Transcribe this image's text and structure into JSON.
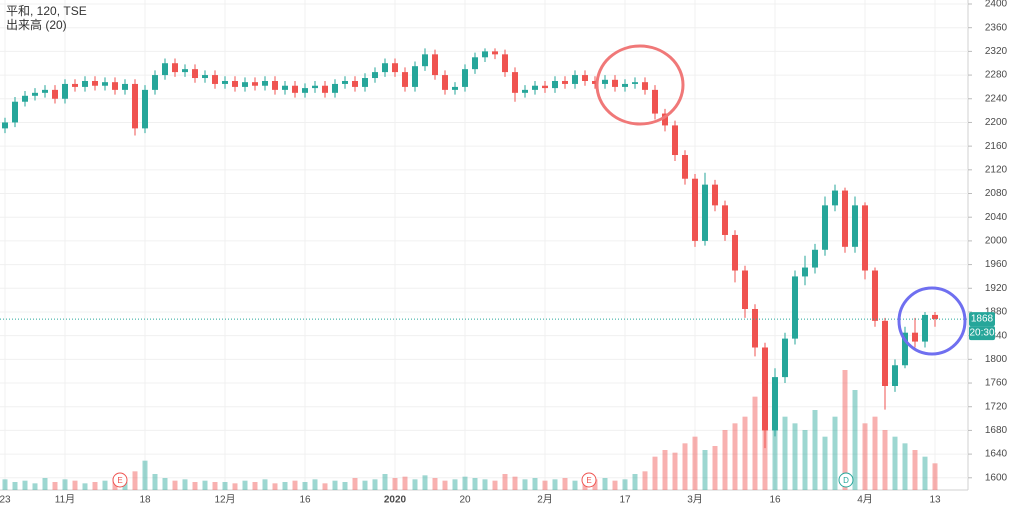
{
  "chart_data": {
    "type": "candlestick",
    "title": "平和, 120, TSE",
    "subtitle": "出来高 (20)",
    "categories": [
      "23",
      null,
      null,
      null,
      null,
      null,
      "11月",
      null,
      null,
      null,
      null,
      null,
      null,
      null,
      "18",
      null,
      null,
      null,
      null,
      null,
      null,
      null,
      "12月",
      null,
      null,
      null,
      null,
      null,
      null,
      null,
      "16",
      null,
      null,
      null,
      null,
      null,
      null,
      null,
      null,
      "2020",
      null,
      null,
      null,
      null,
      null,
      null,
      "20",
      null,
      null,
      null,
      null,
      null,
      null,
      null,
      "2月",
      null,
      null,
      null,
      null,
      null,
      null,
      null,
      "17",
      null,
      null,
      null,
      null,
      null,
      null,
      "3月",
      null,
      null,
      null,
      null,
      null,
      null,
      null,
      "16",
      null,
      null,
      null,
      null,
      null,
      null,
      null,
      null,
      "4月",
      null,
      null,
      null,
      null,
      null,
      null,
      "13"
    ],
    "open": [
      2190,
      2200,
      2235,
      2245,
      2250,
      2255,
      2240,
      2265,
      2260,
      2270,
      2262,
      2268,
      2255,
      2265,
      2190,
      2255,
      2280,
      2300,
      2285,
      2290,
      2275,
      2280,
      2265,
      2270,
      2260,
      2268,
      2262,
      2270,
      2255,
      2262,
      2250,
      2258,
      2262,
      2250,
      2265,
      2270,
      2260,
      2275,
      2285,
      2300,
      2285,
      2260,
      2295,
      2315,
      2280,
      2255,
      2260,
      2290,
      2310,
      2320,
      2315,
      2285,
      2250,
      2255,
      2262,
      2258,
      2270,
      2265,
      2280,
      2270,
      2265,
      2272,
      2260,
      2265,
      2268,
      2255,
      2215,
      2195,
      2145,
      2105,
      2000,
      2095,
      2060,
      2010,
      1950,
      1885,
      1820,
      1680,
      1770,
      1835,
      1940,
      1955,
      1985,
      2060,
      2085,
      1990,
      2060,
      1950,
      1865,
      1755,
      1790,
      1845,
      1830,
      1875
    ],
    "high": [
      2208,
      2243,
      2253,
      2258,
      2263,
      2263,
      2273,
      2273,
      2278,
      2278,
      2276,
      2276,
      2273,
      2273,
      2263,
      2288,
      2308,
      2308,
      2298,
      2298,
      2288,
      2288,
      2278,
      2278,
      2276,
      2276,
      2278,
      2278,
      2270,
      2270,
      2266,
      2270,
      2270,
      2273,
      2278,
      2278,
      2283,
      2293,
      2308,
      2308,
      2293,
      2303,
      2325,
      2323,
      2288,
      2268,
      2298,
      2318,
      2325,
      2325,
      2323,
      2293,
      2263,
      2270,
      2270,
      2278,
      2278,
      2288,
      2288,
      2278,
      2280,
      2280,
      2273,
      2276,
      2276,
      2263,
      2223,
      2203,
      2153,
      2113,
      2115,
      2103,
      2068,
      2018,
      1958,
      1893,
      1828,
      1785,
      1845,
      1950,
      1975,
      1995,
      2075,
      2095,
      2090,
      2075,
      2065,
      1955,
      1870,
      1800,
      1855,
      1870,
      1880,
      1880
    ],
    "low": [
      2182,
      2192,
      2227,
      2237,
      2242,
      2232,
      2232,
      2252,
      2252,
      2254,
      2254,
      2247,
      2247,
      2178,
      2182,
      2247,
      2272,
      2277,
      2277,
      2267,
      2267,
      2257,
      2257,
      2252,
      2252,
      2254,
      2254,
      2247,
      2247,
      2242,
      2242,
      2250,
      2242,
      2242,
      2257,
      2252,
      2252,
      2267,
      2277,
      2277,
      2252,
      2252,
      2287,
      2272,
      2247,
      2247,
      2252,
      2282,
      2302,
      2307,
      2277,
      2235,
      2242,
      2247,
      2250,
      2250,
      2257,
      2257,
      2262,
      2257,
      2257,
      2252,
      2252,
      2257,
      2247,
      2205,
      2185,
      2135,
      2095,
      1990,
      1992,
      2050,
      2000,
      1930,
      1870,
      1805,
      1650,
      1670,
      1760,
      1825,
      1925,
      1945,
      1975,
      2050,
      1980,
      1980,
      1935,
      1855,
      1715,
      1745,
      1785,
      1820,
      1820,
      1855
    ],
    "close": [
      2200,
      2235,
      2245,
      2250,
      2255,
      2240,
      2265,
      2260,
      2270,
      2262,
      2268,
      2255,
      2265,
      2190,
      2255,
      2280,
      2300,
      2285,
      2290,
      2275,
      2280,
      2265,
      2270,
      2260,
      2268,
      2262,
      2270,
      2255,
      2262,
      2250,
      2258,
      2262,
      2250,
      2265,
      2270,
      2260,
      2275,
      2285,
      2300,
      2285,
      2260,
      2295,
      2315,
      2280,
      2255,
      2260,
      2290,
      2310,
      2320,
      2315,
      2285,
      2250,
      2255,
      2262,
      2258,
      2270,
      2265,
      2280,
      2270,
      2265,
      2272,
      2260,
      2265,
      2268,
      2255,
      2215,
      2195,
      2145,
      2105,
      2000,
      2095,
      2060,
      2010,
      1950,
      1885,
      1820,
      1680,
      1770,
      1835,
      1940,
      1955,
      1985,
      2060,
      2085,
      1990,
      2060,
      1950,
      1865,
      1755,
      1790,
      1845,
      1830,
      1875,
      1868
    ],
    "volume": [
      8,
      6,
      7,
      5,
      9,
      6,
      8,
      7,
      5,
      6,
      7,
      9,
      6,
      14,
      22,
      12,
      9,
      7,
      8,
      6,
      7,
      6,
      6,
      5,
      7,
      6,
      8,
      5,
      6,
      7,
      6,
      8,
      5,
      7,
      6,
      9,
      7,
      8,
      12,
      9,
      10,
      8,
      11,
      9,
      7,
      8,
      10,
      9,
      8,
      7,
      12,
      10,
      8,
      9,
      7,
      8,
      9,
      7,
      10,
      8,
      9,
      7,
      8,
      12,
      14,
      25,
      30,
      28,
      35,
      40,
      30,
      33,
      45,
      50,
      55,
      70,
      85,
      60,
      55,
      50,
      45,
      60,
      40,
      55,
      90,
      75,
      50,
      55,
      45,
      40,
      35,
      30,
      25,
      20
    ],
    "up_color": "#26a69a",
    "down_color": "#ef5350",
    "ylim": [
      1583,
      2407
    ],
    "yticks": [
      1600,
      1640,
      1680,
      1720,
      1760,
      1800,
      1840,
      1880,
      1920,
      1960,
      2000,
      2040,
      2080,
      2120,
      2160,
      2200,
      2240,
      2280,
      2320,
      2360,
      2400
    ],
    "grid": true,
    "last_time": "20:30",
    "events": [
      "E",
      "E",
      "D"
    ]
  }
}
